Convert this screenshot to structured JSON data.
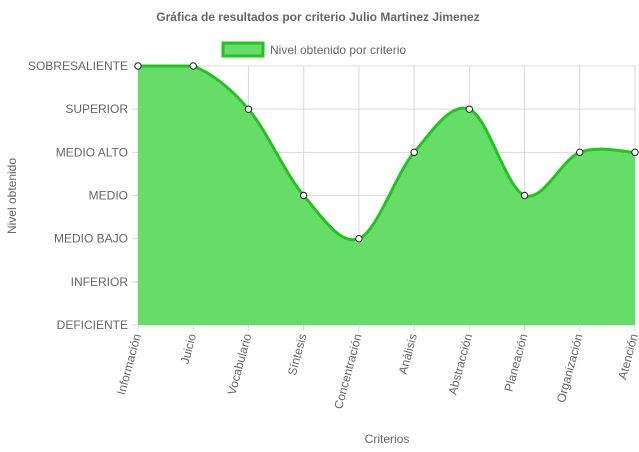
{
  "chart_data": {
    "type": "area",
    "title": "Gráfica de resultados por criterio Julio Martinez Jimenez",
    "xlabel": "Criterios",
    "ylabel": "Nivel obtenido",
    "legend_position": "top",
    "grid": true,
    "y_levels": [
      "DEFICIENTE",
      "INFERIOR",
      "MEDIO BAJO",
      "MEDIO",
      "MEDIO ALTO",
      "SUPERIOR",
      "SOBRESALIENTE"
    ],
    "ylim": [
      0,
      6
    ],
    "categories": [
      "Información",
      "Juicio",
      "Vocabulario",
      "Síntesis",
      "Concentración",
      "Análisis",
      "Abstracción",
      "Planeación",
      "Organización",
      "Atención"
    ],
    "series": [
      {
        "name": "Nivel obtenido por criterio",
        "values": [
          6,
          6,
          5,
          3,
          2,
          4,
          5,
          3,
          4,
          4
        ],
        "fill_color": "#66dd66",
        "line_color": "#22c422"
      }
    ]
  }
}
